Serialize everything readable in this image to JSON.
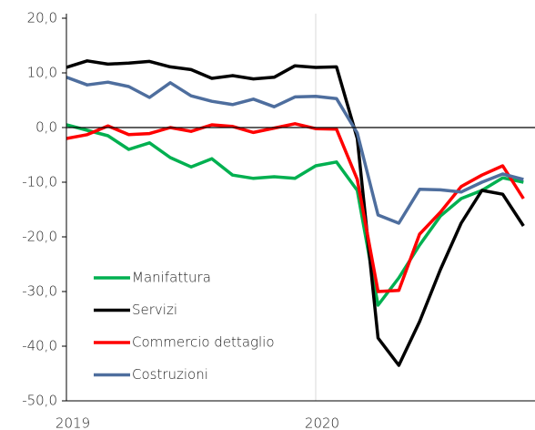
{
  "chart_data": {
    "type": "line",
    "categories": [
      "2019",
      null,
      null,
      null,
      null,
      null,
      null,
      null,
      null,
      null,
      null,
      null,
      "2020",
      null,
      null,
      null,
      null,
      null,
      null,
      null,
      null,
      null,
      null
    ],
    "series": [
      {
        "name": "Manifattura",
        "color": "#00b050",
        "values": [
          0.5,
          -0.5,
          -1.5,
          -4.0,
          -2.8,
          -5.5,
          -7.2,
          -5.7,
          -8.7,
          -9.3,
          -9.0,
          -9.3,
          -7.0,
          -6.3,
          -11.5,
          -32.5,
          -27.5,
          -21.5,
          -16.2,
          -13.0,
          -11.5,
          -9.2,
          -10.0
        ]
      },
      {
        "name": "Servizi",
        "color": "#000000",
        "values": [
          11.0,
          12.2,
          11.6,
          11.8,
          12.1,
          11.1,
          10.6,
          9.0,
          9.5,
          8.9,
          9.2,
          11.3,
          11.0,
          11.1,
          -2.0,
          -38.5,
          -43.5,
          -35.5,
          -26.0,
          -17.5,
          -11.5,
          -12.2,
          -18.0
        ]
      },
      {
        "name": "Commercio dettaglio",
        "color": "#ff0000",
        "values": [
          -2.0,
          -1.3,
          0.3,
          -1.3,
          -1.1,
          0.0,
          -0.7,
          0.5,
          0.2,
          -0.9,
          -0.1,
          0.7,
          -0.2,
          -0.3,
          -9.5,
          -30.0,
          -29.8,
          -19.5,
          -15.5,
          -10.8,
          -8.7,
          -7.0,
          -13.0
        ]
      },
      {
        "name": "Costruzioni",
        "color": "#4e6e9e",
        "values": [
          9.2,
          7.8,
          8.3,
          7.5,
          5.5,
          8.2,
          5.8,
          4.8,
          4.2,
          5.2,
          3.8,
          5.6,
          5.7,
          5.3,
          -1.0,
          -16.0,
          -17.5,
          -11.3,
          -11.4,
          -11.8,
          -10.0,
          -8.5,
          -9.5
        ]
      }
    ],
    "ylim": [
      -50,
      20
    ],
    "yticks": [
      {
        "value": -50,
        "label": "-50,0"
      },
      {
        "value": -40,
        "label": "-40,0"
      },
      {
        "value": -30,
        "label": "-30,0"
      },
      {
        "value": -20,
        "label": "-20,0"
      },
      {
        "value": -10,
        "label": "-10,0"
      },
      {
        "value": 0,
        "label": "0,0"
      },
      {
        "value": 10,
        "label": "10,0"
      },
      {
        "value": 20,
        "label": "20,0"
      }
    ],
    "legend": "lower left"
  }
}
